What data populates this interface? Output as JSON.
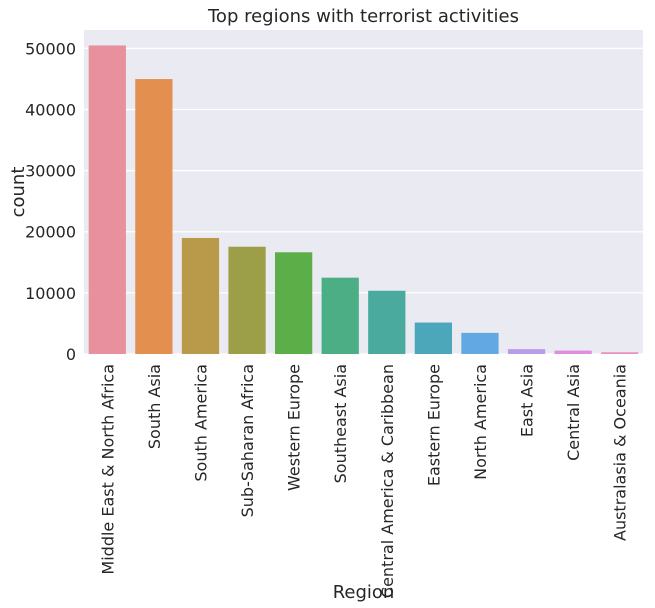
{
  "chart_data": {
    "type": "bar",
    "title": "Top regions with terrorist activities",
    "xlabel": "Region",
    "ylabel": "count",
    "categories": [
      "Middle East & North Africa",
      "South Asia",
      "South America",
      "Sub-Saharan Africa",
      "Western Europe",
      "Southeast Asia",
      "Central America & Caribbean",
      "Eastern Europe",
      "North America",
      "East Asia",
      "Central Asia",
      "Australasia & Oceania"
    ],
    "values": [
      50474,
      44974,
      18978,
      17550,
      16639,
      12485,
      10344,
      5144,
      3456,
      802,
      563,
      282
    ],
    "colors": [
      "#e8909d",
      "#e28f4f",
      "#b99a4a",
      "#9d9f48",
      "#5bae48",
      "#4cae85",
      "#4aaa9d",
      "#4ba7b9",
      "#62a9e4",
      "#b99de8",
      "#e08fe0",
      "#e890b8"
    ],
    "yticks": [
      0,
      10000,
      20000,
      30000,
      40000,
      50000
    ],
    "ylim": [
      0,
      53000
    ],
    "grid": true,
    "background": "#eaeaf2"
  }
}
